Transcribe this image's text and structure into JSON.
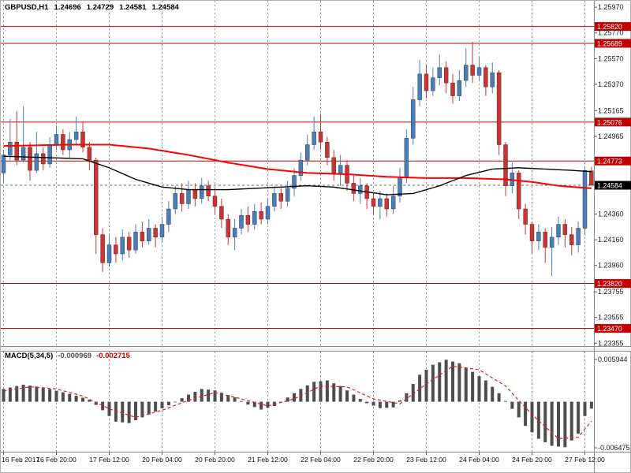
{
  "header": {
    "symbol": "GBPUSD,H1",
    "open": "1.24696",
    "high": "1.24729",
    "low": "1.24581",
    "close": "1.24584"
  },
  "indicator": {
    "label": "MACD(5,34,5)",
    "value_main": "-0.000969",
    "value_signal": "-0.002715",
    "scale_max": "0.005944",
    "scale_min": "-0.006475"
  },
  "colors": {
    "bull": "#4a7ebb",
    "bear": "#cc3333",
    "ma_fast": "#000000",
    "ma_slow": "#ff0000",
    "level": "#c00000",
    "current_bg": "#000000",
    "grid": "#8f8f8f",
    "histogram": "#4d4d4d",
    "signal": "#e02020",
    "axis_text": "#1a1a1a"
  },
  "chart_data": {
    "type": "candlestick",
    "title": "GBPUSD,H1",
    "price_axis": {
      "min": 1.2332,
      "max": 1.2602,
      "ticks": [
        "1.25970",
        "1.25770",
        "1.25570",
        "1.25370",
        "1.25165",
        "1.24965",
        "1.24360",
        "1.24160",
        "1.23960",
        "1.23755",
        "1.23555",
        "1.23355"
      ]
    },
    "levels": [
      "1.25820",
      "1.25689",
      "1.25076",
      "1.24773",
      "1.23820",
      "1.23470"
    ],
    "current_price": "1.24584",
    "x_labels": [
      "16 Feb 2017",
      "16 Feb 20:00",
      "17 Feb 12:00",
      "20 Feb 04:00",
      "20 Feb 20:00",
      "21 Feb 12:00",
      "22 Feb 04:00",
      "22 Feb 20:00",
      "23 Feb 12:00",
      "24 Feb 04:00",
      "24 Feb 20:00",
      "27 Feb 12:00"
    ],
    "candles_per_gridline": 8,
    "candles": [
      [
        1.2468,
        1.2486,
        1.246,
        1.2482
      ],
      [
        1.2482,
        1.251,
        1.2478,
        1.2492
      ],
      [
        1.2492,
        1.2516,
        1.2474,
        1.2478
      ],
      [
        1.2478,
        1.252,
        1.2476,
        1.2488
      ],
      [
        1.2488,
        1.2492,
        1.2462,
        1.247
      ],
      [
        1.247,
        1.25,
        1.2468,
        1.2483
      ],
      [
        1.2483,
        1.2488,
        1.247,
        1.2475
      ],
      [
        1.2475,
        1.2496,
        1.2472,
        1.249
      ],
      [
        1.249,
        1.2505,
        1.2486,
        1.2498
      ],
      [
        1.2498,
        1.2502,
        1.2482,
        1.2486
      ],
      [
        1.2486,
        1.25,
        1.248,
        1.2494
      ],
      [
        1.2494,
        1.2512,
        1.249,
        1.25
      ],
      [
        1.25,
        1.2508,
        1.2484,
        1.2488
      ],
      [
        1.2488,
        1.2492,
        1.247,
        1.2478
      ],
      [
        1.2478,
        1.248,
        1.2405,
        1.242
      ],
      [
        1.242,
        1.2425,
        1.2391,
        1.2398
      ],
      [
        1.2398,
        1.242,
        1.2395,
        1.2412
      ],
      [
        1.2412,
        1.2418,
        1.2398,
        1.2405
      ],
      [
        1.2405,
        1.2424,
        1.24,
        1.2418
      ],
      [
        1.2418,
        1.2422,
        1.2402,
        1.2408
      ],
      [
        1.2408,
        1.2428,
        1.2405,
        1.2422
      ],
      [
        1.2422,
        1.243,
        1.241,
        1.2415
      ],
      [
        1.2415,
        1.2432,
        1.2412,
        1.2425
      ],
      [
        1.2425,
        1.2428,
        1.241,
        1.2418
      ],
      [
        1.2418,
        1.2434,
        1.2414,
        1.2428
      ],
      [
        1.2428,
        1.2446,
        1.2422,
        1.244
      ],
      [
        1.244,
        1.2458,
        1.2436,
        1.2452
      ],
      [
        1.2452,
        1.246,
        1.2438,
        1.2444
      ],
      [
        1.2444,
        1.2462,
        1.244,
        1.2455
      ],
      [
        1.2455,
        1.246,
        1.2442,
        1.2448
      ],
      [
        1.2448,
        1.2464,
        1.2444,
        1.2458
      ],
      [
        1.2458,
        1.2462,
        1.2446,
        1.245
      ],
      [
        1.245,
        1.2456,
        1.2436,
        1.2442
      ],
      [
        1.2442,
        1.2448,
        1.2425,
        1.2432
      ],
      [
        1.2432,
        1.2436,
        1.2412,
        1.2418
      ],
      [
        1.2418,
        1.2432,
        1.2408,
        1.2425
      ],
      [
        1.2425,
        1.244,
        1.242,
        1.2435
      ],
      [
        1.2435,
        1.2442,
        1.2422,
        1.2428
      ],
      [
        1.2428,
        1.2444,
        1.2424,
        1.2438
      ],
      [
        1.2438,
        1.2445,
        1.2428,
        1.2432
      ],
      [
        1.2432,
        1.2448,
        1.2428,
        1.2442
      ],
      [
        1.2442,
        1.2458,
        1.2438,
        1.2452
      ],
      [
        1.2452,
        1.2456,
        1.244,
        1.2446
      ],
      [
        1.2446,
        1.2462,
        1.2442,
        1.2456
      ],
      [
        1.2456,
        1.2472,
        1.245,
        1.2466
      ],
      [
        1.2466,
        1.2484,
        1.2462,
        1.2478
      ],
      [
        1.2478,
        1.2498,
        1.2474,
        1.249
      ],
      [
        1.249,
        1.2512,
        1.2486,
        1.25
      ],
      [
        1.25,
        1.2514,
        1.2486,
        1.2492
      ],
      [
        1.2492,
        1.2496,
        1.2474,
        1.248
      ],
      [
        1.248,
        1.2486,
        1.2462,
        1.2468
      ],
      [
        1.2468,
        1.2482,
        1.2458,
        1.2474
      ],
      [
        1.2474,
        1.2478,
        1.2454,
        1.246
      ],
      [
        1.246,
        1.2466,
        1.2446,
        1.2452
      ],
      [
        1.2452,
        1.2464,
        1.2444,
        1.2458
      ],
      [
        1.2458,
        1.246,
        1.244,
        1.2448
      ],
      [
        1.2448,
        1.2452,
        1.2436,
        1.2442
      ],
      [
        1.2442,
        1.2454,
        1.2432,
        1.2448
      ],
      [
        1.2448,
        1.2452,
        1.2434,
        1.244
      ],
      [
        1.244,
        1.2458,
        1.2436,
        1.245
      ],
      [
        1.245,
        1.2472,
        1.2445,
        1.2465
      ],
      [
        1.2465,
        1.2502,
        1.246,
        1.2495
      ],
      [
        1.2495,
        1.2535,
        1.249,
        1.2525
      ],
      [
        1.2525,
        1.2556,
        1.252,
        1.2545
      ],
      [
        1.2545,
        1.2552,
        1.2526,
        1.2532
      ],
      [
        1.2532,
        1.255,
        1.2528,
        1.2542
      ],
      [
        1.2542,
        1.256,
        1.2536,
        1.255
      ],
      [
        1.255,
        1.2555,
        1.253,
        1.2538
      ],
      [
        1.2538,
        1.2545,
        1.2522,
        1.2528
      ],
      [
        1.2528,
        1.2548,
        1.2524,
        1.254
      ],
      [
        1.254,
        1.2565,
        1.2535,
        1.2552
      ],
      [
        1.2552,
        1.257,
        1.2538,
        1.2544
      ],
      [
        1.2544,
        1.2558,
        1.254,
        1.255
      ],
      [
        1.255,
        1.2552,
        1.2528,
        1.2535
      ],
      [
        1.2535,
        1.2554,
        1.253,
        1.2546
      ],
      [
        1.2546,
        1.2548,
        1.2482,
        1.249
      ],
      [
        1.249,
        1.2492,
        1.245,
        1.2458
      ],
      [
        1.2458,
        1.2476,
        1.2452,
        1.2468
      ],
      [
        1.2468,
        1.247,
        1.2432,
        1.244
      ],
      [
        1.244,
        1.2444,
        1.242,
        1.2428
      ],
      [
        1.2428,
        1.243,
        1.2405,
        1.2415
      ],
      [
        1.2415,
        1.2428,
        1.2408,
        1.2422
      ],
      [
        1.2422,
        1.2425,
        1.2398,
        1.241
      ],
      [
        1.241,
        1.2426,
        1.2388,
        1.2418
      ],
      [
        1.2418,
        1.2434,
        1.2412,
        1.2428
      ],
      [
        1.2428,
        1.2432,
        1.241,
        1.242
      ],
      [
        1.242,
        1.2426,
        1.2404,
        1.2412
      ],
      [
        1.2412,
        1.243,
        1.2406,
        1.2425
      ],
      [
        1.2425,
        1.2473,
        1.242,
        1.247
      ],
      [
        1.24696,
        1.24729,
        1.24581,
        1.24584
      ]
    ],
    "ma_slow_red": [
      [
        0,
        1.2489
      ],
      [
        10,
        1.249
      ],
      [
        16,
        1.249
      ],
      [
        22,
        1.2487
      ],
      [
        28,
        1.2482
      ],
      [
        34,
        1.2476
      ],
      [
        40,
        1.2471
      ],
      [
        46,
        1.2468
      ],
      [
        52,
        1.2467
      ],
      [
        58,
        1.2465
      ],
      [
        64,
        1.2464
      ],
      [
        70,
        1.2464
      ],
      [
        76,
        1.2463
      ],
      [
        80,
        1.2461
      ],
      [
        84,
        1.2458
      ],
      [
        89,
        1.2456
      ]
    ],
    "ma_fast_black": [
      [
        0,
        1.2481
      ],
      [
        6,
        1.248
      ],
      [
        12,
        1.2479
      ],
      [
        16,
        1.2472
      ],
      [
        20,
        1.2463
      ],
      [
        24,
        1.2457
      ],
      [
        28,
        1.2455
      ],
      [
        34,
        1.2455
      ],
      [
        38,
        1.2456
      ],
      [
        42,
        1.2457
      ],
      [
        46,
        1.2458
      ],
      [
        50,
        1.2457
      ],
      [
        54,
        1.2454
      ],
      [
        58,
        1.2451
      ],
      [
        62,
        1.2452
      ],
      [
        66,
        1.2458
      ],
      [
        70,
        1.2466
      ],
      [
        74,
        1.2471
      ],
      [
        78,
        1.2472
      ],
      [
        82,
        1.2471
      ],
      [
        86,
        1.247
      ],
      [
        89,
        1.2469
      ]
    ],
    "macd": {
      "type": "histogram+signal",
      "range": [
        -0.00703,
        0.00672
      ],
      "histogram_anchors": [
        [
          0,
          0.0018
        ],
        [
          3,
          0.0024
        ],
        [
          6,
          0.002
        ],
        [
          10,
          0.0011
        ],
        [
          13,
          0.0003
        ],
        [
          15,
          -0.0012
        ],
        [
          17,
          -0.0028
        ],
        [
          19,
          -0.003
        ],
        [
          22,
          -0.0018
        ],
        [
          25,
          -0.0005
        ],
        [
          28,
          0.001
        ],
        [
          30,
          0.0018
        ],
        [
          32,
          0.0016
        ],
        [
          35,
          0.0006
        ],
        [
          37,
          -0.0004
        ],
        [
          39,
          -0.0011
        ],
        [
          41,
          -0.0006
        ],
        [
          43,
          0.0006
        ],
        [
          45,
          0.0018
        ],
        [
          47,
          0.0028
        ],
        [
          49,
          0.003
        ],
        [
          51,
          0.0022
        ],
        [
          53,
          0.001
        ],
        [
          55,
          -0.0002
        ],
        [
          57,
          -0.0009
        ],
        [
          59,
          -0.0008
        ],
        [
          61,
          0.0012
        ],
        [
          63,
          0.0038
        ],
        [
          65,
          0.0052
        ],
        [
          67,
          0.0059
        ],
        [
          69,
          0.0054
        ],
        [
          71,
          0.0042
        ],
        [
          73,
          0.003
        ],
        [
          75,
          0.0012
        ],
        [
          77,
          -0.001
        ],
        [
          79,
          -0.0034
        ],
        [
          81,
          -0.0052
        ],
        [
          83,
          -0.0062
        ],
        [
          85,
          -0.0064
        ],
        [
          87,
          -0.0045
        ],
        [
          88,
          -0.002
        ],
        [
          89,
          -0.000969
        ]
      ],
      "signal_anchors": [
        [
          0,
          0.0015
        ],
        [
          4,
          0.0021
        ],
        [
          8,
          0.0018
        ],
        [
          12,
          0.0008
        ],
        [
          16,
          -0.001
        ],
        [
          20,
          -0.0022
        ],
        [
          24,
          -0.0012
        ],
        [
          28,
          0.0002
        ],
        [
          32,
          0.0013
        ],
        [
          36,
          0.0004
        ],
        [
          40,
          -0.0006
        ],
        [
          44,
          0.0004
        ],
        [
          48,
          0.0022
        ],
        [
          52,
          0.0021
        ],
        [
          56,
          0.0004
        ],
        [
          60,
          -0.0003
        ],
        [
          64,
          0.0025
        ],
        [
          68,
          0.005
        ],
        [
          72,
          0.0045
        ],
        [
          76,
          0.0022
        ],
        [
          80,
          -0.0018
        ],
        [
          84,
          -0.0052
        ],
        [
          87,
          -0.005
        ],
        [
          89,
          -0.002715
        ]
      ]
    }
  }
}
